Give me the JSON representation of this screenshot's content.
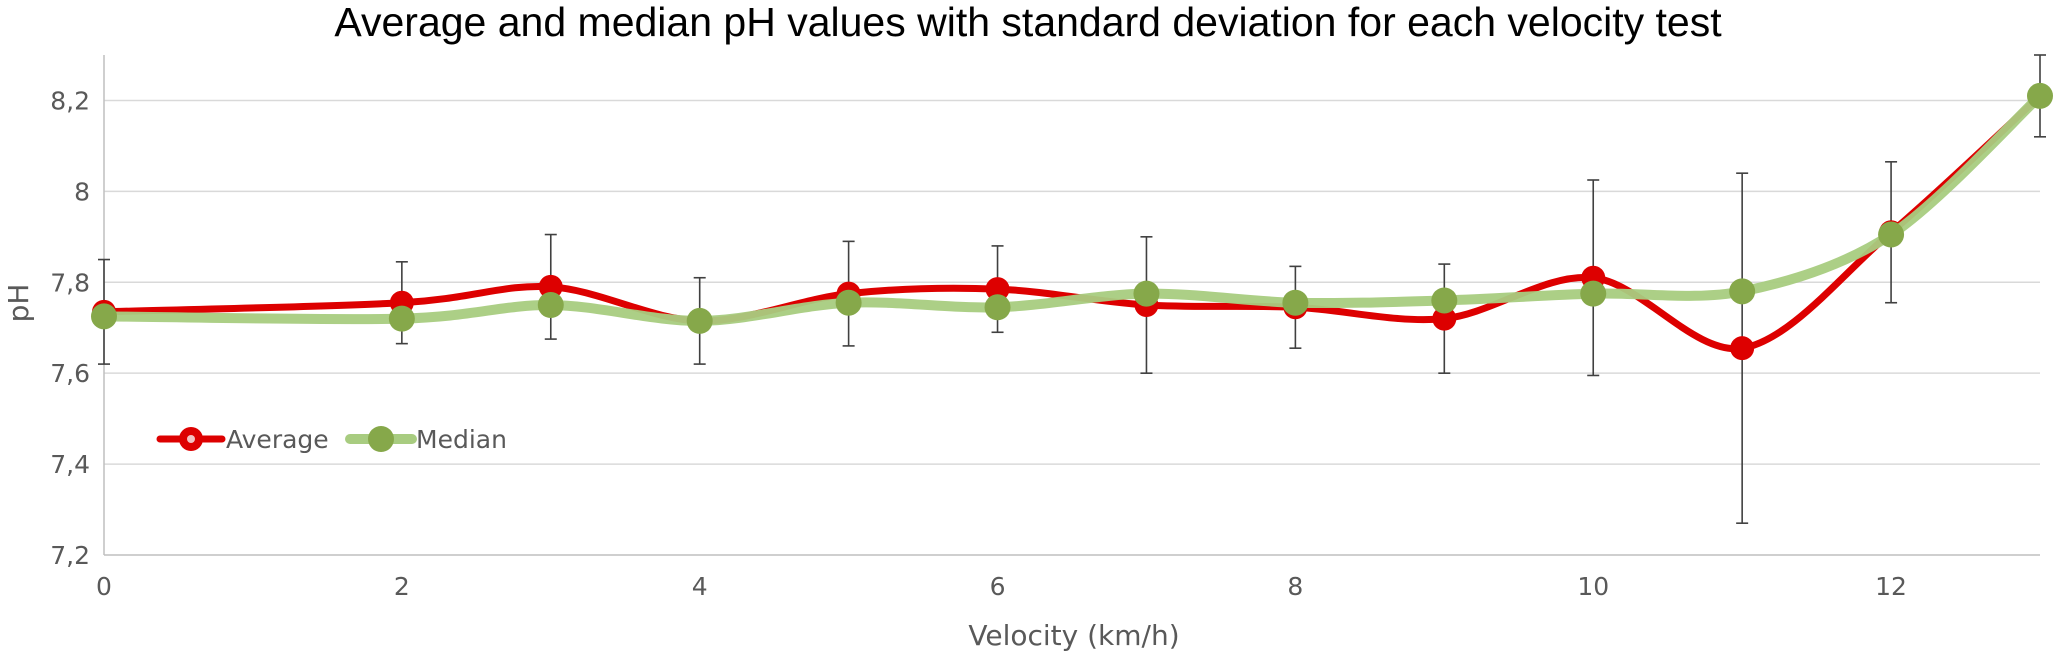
{
  "chart_data": {
    "type": "line",
    "title": "Average and median pH values with standard deviation for each velocity test",
    "xlabel": "Velocity (km/h)",
    "ylabel": "pH",
    "xlim": [
      0,
      13
    ],
    "ylim": [
      7.2,
      8.3
    ],
    "x_ticks": [
      0,
      2,
      4,
      6,
      8,
      10,
      12
    ],
    "x_tick_labels": [
      "0",
      "2",
      "4",
      "6",
      "8",
      "10",
      "12"
    ],
    "y_ticks": [
      7.2,
      7.4,
      7.6,
      7.8,
      8.0,
      8.2
    ],
    "y_tick_labels": [
      "7,2",
      "7,4",
      "7,6",
      "7,8",
      "8",
      "8,2"
    ],
    "grid": true,
    "legend_position": "lower-left",
    "x": [
      0,
      2,
      3,
      4,
      5,
      6,
      7,
      8,
      9,
      10,
      11,
      12,
      13
    ],
    "series": [
      {
        "name": "Average",
        "color": "#dd0000",
        "values": [
          7.735,
          7.755,
          7.79,
          7.715,
          7.775,
          7.785,
          7.75,
          7.745,
          7.72,
          7.81,
          7.655,
          7.91,
          8.21
        ],
        "error": [
          0.115,
          0.09,
          0.115,
          0.095,
          0.115,
          0.095,
          0.15,
          0.09,
          0.12,
          0.215,
          0.385,
          0.155,
          0.09
        ]
      },
      {
        "name": "Median",
        "color": "#a8cc80",
        "marker_color": "#86a84a",
        "values": [
          7.725,
          7.72,
          7.75,
          7.715,
          7.755,
          7.745,
          7.775,
          7.755,
          7.76,
          7.775,
          7.78,
          7.905,
          8.21
        ]
      }
    ]
  }
}
